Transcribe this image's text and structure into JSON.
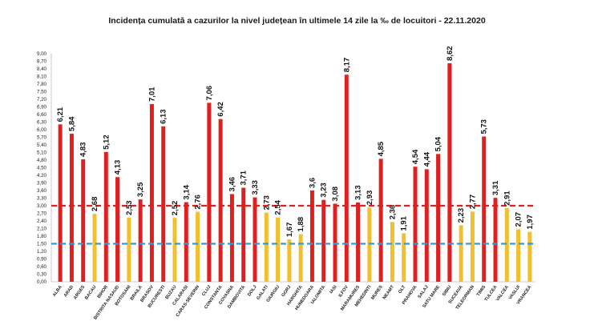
{
  "chart_data": {
    "type": "bar",
    "title": "Incidența cumulată a cazurilor la nivel județean în ultimele 14 zile la ‰ de locuitori - 22.11.2020",
    "xlabel": "",
    "ylabel": "",
    "ylim": [
      0,
      9
    ],
    "yticks": [
      "9,00",
      "8,70",
      "8,40",
      "8,10",
      "7,80",
      "7,50",
      "7,20",
      "6,90",
      "6,60",
      "6,30",
      "6,00",
      "5,70",
      "5,40",
      "5,10",
      "4,80",
      "4,50",
      "4,20",
      "3,90",
      "3,60",
      "3,30",
      "3,00",
      "2,70",
      "2,40",
      "2,10",
      "1,80",
      "1,50",
      "1,20",
      "0,90",
      "0,60",
      "0,30",
      "0,00"
    ],
    "grid": false,
    "legend": "none",
    "thresholds": [
      {
        "value": 3.0,
        "color": "#e02020",
        "style": "dashed"
      },
      {
        "value": 1.5,
        "color": "#3399dd",
        "style": "dashed"
      }
    ],
    "colors": {
      "above_3": "#e02020",
      "between": "#f0c030",
      "threshold_red": "#e02020",
      "threshold_blue": "#3399dd"
    },
    "categories": [
      "ALBA",
      "ARAD",
      "ARGES",
      "BACAU",
      "BIHOR",
      "BISTRITA NASAUD",
      "BOTOSANI",
      "BRAILA",
      "BRASOV",
      "BUCURESTI",
      "BUZAU",
      "CALARASI",
      "CARAS-SEVERIN",
      "CLUJ",
      "CONSTANTA",
      "COVASNA",
      "DAMBOVITA",
      "DOLJ",
      "GALATI",
      "GIURGIU",
      "GORJ",
      "HARGHITA",
      "HUNEDOARA",
      "IALOMITA",
      "IASI",
      "ILFOV",
      "MARAMURES",
      "MEHEDINTI",
      "MURES",
      "NEAMT",
      "OLT",
      "PRAHOVA",
      "SALAJ",
      "SATU MARE",
      "SIBIU",
      "SUCEAVA",
      "TELEORMAN",
      "TIMIS",
      "TULCEA",
      "VALCEA",
      "VASLUI",
      "VRANCEA"
    ],
    "values": [
      6.21,
      5.84,
      4.83,
      2.68,
      5.12,
      4.13,
      2.53,
      3.25,
      7.01,
      6.13,
      2.52,
      3.14,
      2.76,
      7.06,
      6.42,
      3.46,
      3.71,
      3.33,
      2.73,
      2.54,
      1.67,
      1.88,
      3.6,
      3.23,
      3.08,
      8.17,
      3.13,
      2.93,
      4.85,
      2.36,
      1.91,
      4.54,
      4.44,
      5.04,
      8.62,
      2.23,
      2.77,
      5.73,
      3.31,
      2.91,
      2.07,
      1.97
    ],
    "value_labels": [
      "6,21",
      "5,84",
      "4,83",
      "2,68",
      "5,12",
      "4,13",
      "2,53",
      "3,25",
      "7,01",
      "6,13",
      "2,52",
      "3,14",
      "2,76",
      "7,06",
      "6,42",
      "3,46",
      "3,71",
      "3,33",
      "2,73",
      "2,54",
      "1,67",
      "1,88",
      "3,6",
      "3,23",
      "3,08",
      "8,17",
      "3,13",
      "2,93",
      "4,85",
      "2,36",
      "1,91",
      "4,54",
      "4,44",
      "5,04",
      "8,62",
      "2,23",
      "2,77",
      "5,73",
      "3,31",
      "2,91",
      "2,07",
      "1,97"
    ]
  }
}
